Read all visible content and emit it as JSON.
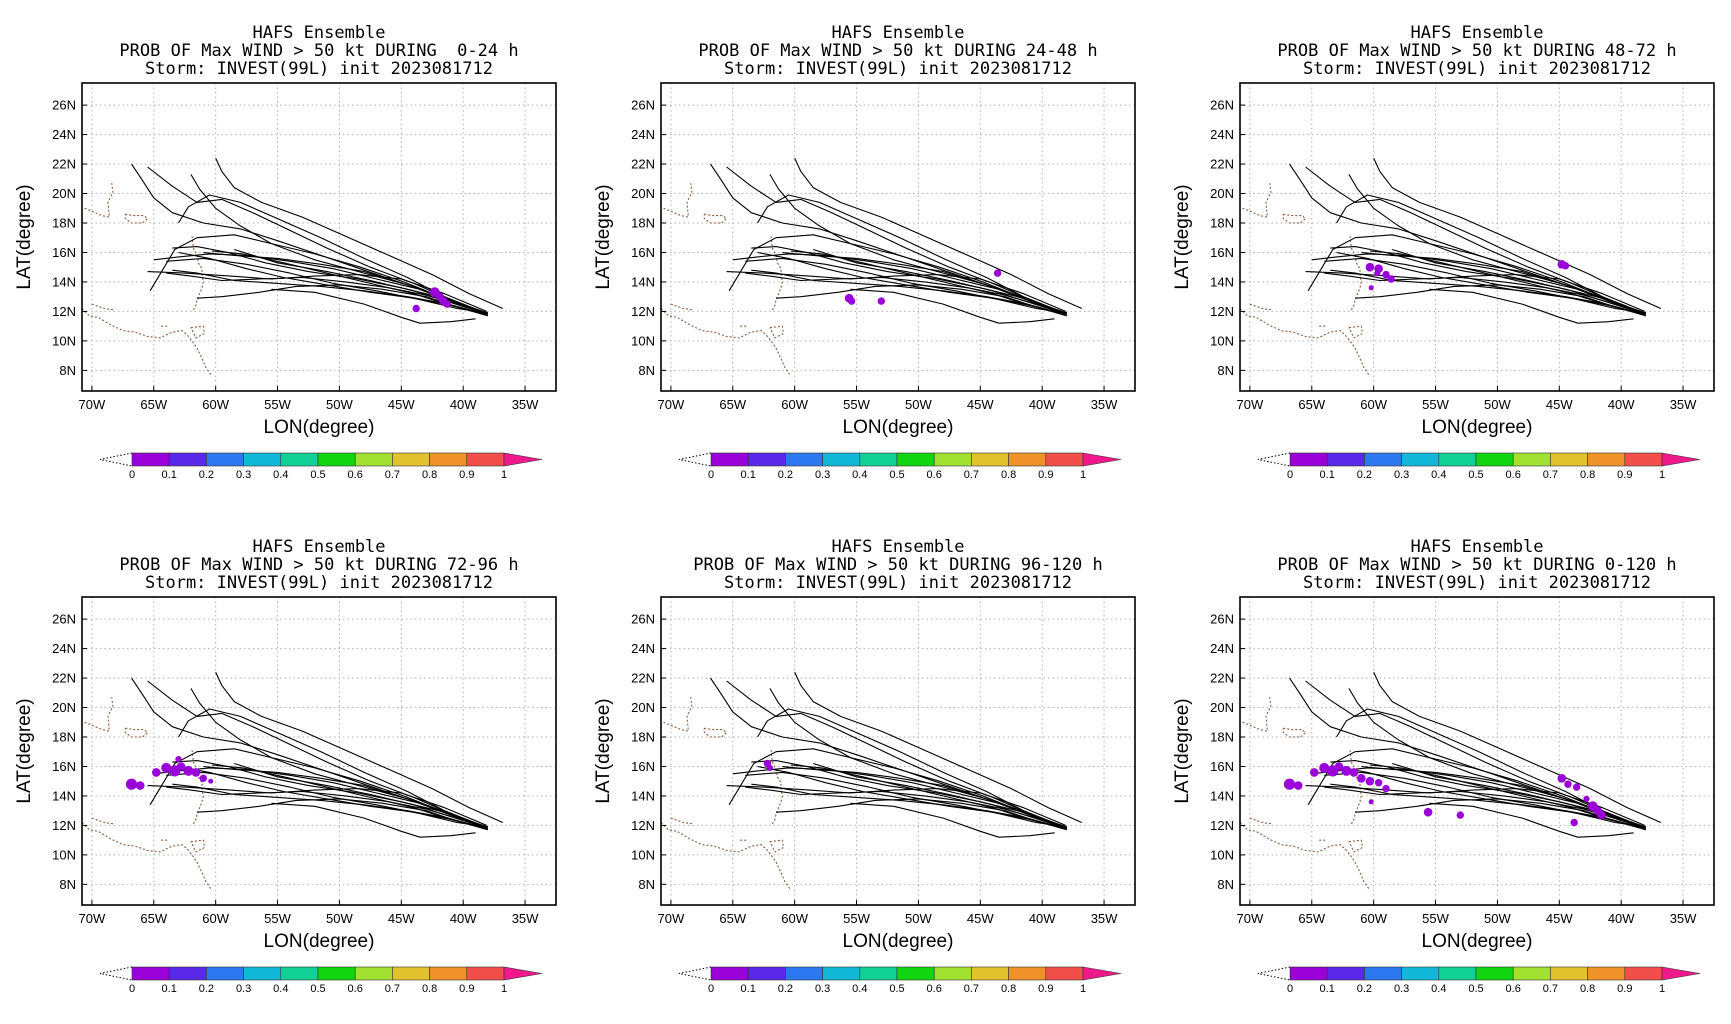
{
  "figure": {
    "model": "HAFS Ensemble",
    "storm_line": "Storm: INVEST(99L) init 2023081712"
  },
  "axes": {
    "lon_ticks": [
      {
        "value": -70,
        "label": "70W"
      },
      {
        "value": -65,
        "label": "65W"
      },
      {
        "value": -60,
        "label": "60W"
      },
      {
        "value": -55,
        "label": "55W"
      },
      {
        "value": -50,
        "label": "50W"
      },
      {
        "value": -45,
        "label": "45W"
      },
      {
        "value": -40,
        "label": "40W"
      },
      {
        "value": -35,
        "label": "35W"
      }
    ],
    "lat_ticks": [
      {
        "value": 8,
        "label": "8N"
      },
      {
        "value": 10,
        "label": "10N"
      },
      {
        "value": 12,
        "label": "12N"
      },
      {
        "value": 14,
        "label": "14N"
      },
      {
        "value": 16,
        "label": "16N"
      },
      {
        "value": 18,
        "label": "18N"
      },
      {
        "value": 20,
        "label": "20N"
      },
      {
        "value": 22,
        "label": "22N"
      },
      {
        "value": 24,
        "label": "24N"
      },
      {
        "value": 26,
        "label": "26N"
      }
    ],
    "xlabel": "LON(degree)",
    "ylabel": "LAT(degree)",
    "lon_range": [
      -70.8,
      -32.5
    ],
    "lat_range": [
      6.6,
      27.5
    ],
    "grid": "dotted"
  },
  "colorbar": {
    "labels": [
      "0",
      "0.1",
      "0.2",
      "0.3",
      "0.4",
      "0.5",
      "0.6",
      "0.7",
      "0.8",
      "0.9",
      "1"
    ],
    "colors": [
      "#9a00d8",
      "#5a28e8",
      "#2b78f0",
      "#12b8d8",
      "#10d094",
      "#12d512",
      "#a2e032",
      "#e2c22e",
      "#f0922a",
      "#f24f4a"
    ],
    "over_color": "#f0198c"
  },
  "tracks": [
    [
      [
        -38.0,
        11.8
      ],
      [
        -41.0,
        12.6
      ],
      [
        -44.0,
        13.4
      ],
      [
        -47.5,
        14.1
      ],
      [
        -51.0,
        14.7
      ],
      [
        -55.0,
        15.3
      ],
      [
        -58.5,
        16.2
      ]
    ],
    [
      [
        -38.3,
        11.8
      ],
      [
        -41.0,
        12.8
      ],
      [
        -44.5,
        13.8
      ],
      [
        -48.0,
        14.6
      ],
      [
        -52.0,
        15.5
      ],
      [
        -55.5,
        16.6
      ],
      [
        -58.0,
        17.8
      ],
      [
        -60.0,
        19.0
      ],
      [
        -61.3,
        20.3
      ],
      [
        -62.0,
        21.3
      ]
    ],
    [
      [
        -38.5,
        12.0
      ],
      [
        -41.5,
        13.0
      ],
      [
        -44.5,
        14.3
      ],
      [
        -48.0,
        15.6
      ],
      [
        -51.5,
        17.0
      ],
      [
        -55.0,
        18.3
      ],
      [
        -58.0,
        19.4
      ],
      [
        -60.5,
        19.9
      ],
      [
        -62.2,
        19.1
      ],
      [
        -63.0,
        18.0
      ]
    ],
    [
      [
        -36.8,
        12.2
      ],
      [
        -39.5,
        13.2
      ],
      [
        -42.5,
        14.5
      ],
      [
        -46.0,
        15.8
      ],
      [
        -49.5,
        17.1
      ],
      [
        -53.0,
        18.4
      ],
      [
        -56.3,
        19.4
      ],
      [
        -58.5,
        20.4
      ],
      [
        -59.5,
        21.5
      ],
      [
        -60.0,
        22.4
      ]
    ],
    [
      [
        -38.0,
        11.9
      ],
      [
        -40.5,
        12.6
      ],
      [
        -43.5,
        13.5
      ],
      [
        -47.0,
        14.2
      ],
      [
        -50.5,
        14.9
      ],
      [
        -54.0,
        15.4
      ],
      [
        -57.5,
        15.8
      ],
      [
        -60.5,
        15.9
      ],
      [
        -63.0,
        15.7
      ],
      [
        -65.0,
        15.5
      ]
    ],
    [
      [
        -38.2,
        11.9
      ],
      [
        -41.0,
        12.8
      ],
      [
        -44.0,
        13.9
      ],
      [
        -47.5,
        15.0
      ],
      [
        -51.0,
        16.3
      ],
      [
        -54.0,
        17.5
      ],
      [
        -57.0,
        18.7
      ],
      [
        -59.5,
        19.6
      ],
      [
        -61.5,
        19.4
      ],
      [
        -63.5,
        20.5
      ],
      [
        -65.5,
        21.8
      ]
    ],
    [
      [
        -38.0,
        11.7
      ],
      [
        -40.5,
        12.3
      ],
      [
        -43.0,
        13.0
      ],
      [
        -46.5,
        13.5
      ],
      [
        -50.0,
        13.8
      ],
      [
        -53.5,
        13.7
      ],
      [
        -56.5,
        13.3
      ],
      [
        -59.5,
        13.0
      ],
      [
        -61.5,
        12.9
      ]
    ],
    [
      [
        -38.3,
        11.8
      ],
      [
        -41.0,
        12.4
      ],
      [
        -44.0,
        13.2
      ],
      [
        -47.5,
        13.9
      ],
      [
        -51.0,
        14.6
      ],
      [
        -54.5,
        15.3
      ],
      [
        -57.8,
        15.9
      ],
      [
        -60.3,
        16.1
      ]
    ],
    [
      [
        -38.1,
        12.0
      ],
      [
        -41.5,
        13.2
      ],
      [
        -45.0,
        14.2
      ],
      [
        -48.5,
        14.5
      ],
      [
        -52.0,
        14.4
      ],
      [
        -55.5,
        14.2
      ],
      [
        -58.8,
        14.4
      ],
      [
        -62.5,
        14.6
      ],
      [
        -65.5,
        14.7
      ]
    ],
    [
      [
        -38.0,
        11.8
      ],
      [
        -41.0,
        12.4
      ],
      [
        -44.0,
        12.9
      ],
      [
        -47.5,
        13.3
      ],
      [
        -51.0,
        13.8
      ],
      [
        -54.5,
        14.3
      ],
      [
        -57.5,
        14.9
      ],
      [
        -60.5,
        15.6
      ],
      [
        -63.0,
        16.0
      ]
    ],
    [
      [
        -38.4,
        11.9
      ],
      [
        -41.0,
        12.8
      ],
      [
        -44.5,
        13.8
      ],
      [
        -48.0,
        14.8
      ],
      [
        -51.5,
        15.8
      ],
      [
        -55.0,
        16.8
      ],
      [
        -58.0,
        17.6
      ],
      [
        -61.0,
        18.0
      ],
      [
        -63.5,
        18.7
      ],
      [
        -65.0,
        19.7
      ],
      [
        -66.0,
        21.0
      ],
      [
        -66.8,
        22.0
      ]
    ],
    [
      [
        -38.0,
        11.8
      ],
      [
        -41.5,
        12.9
      ],
      [
        -45.0,
        13.6
      ],
      [
        -48.5,
        14.2
      ],
      [
        -52.5,
        14.7
      ],
      [
        -56.0,
        15.3
      ],
      [
        -59.0,
        16.0
      ],
      [
        -61.5,
        16.4
      ],
      [
        -63.5,
        16.3
      ]
    ],
    [
      [
        -38.2,
        11.9
      ],
      [
        -40.5,
        12.5
      ],
      [
        -43.0,
        13.1
      ],
      [
        -46.0,
        13.6
      ],
      [
        -49.5,
        14.0
      ],
      [
        -53.0,
        14.3
      ],
      [
        -56.5,
        14.2
      ],
      [
        -59.5,
        14.1
      ],
      [
        -62.0,
        14.4
      ],
      [
        -64.0,
        14.6
      ]
    ],
    [
      [
        -38.0,
        11.8
      ],
      [
        -41.0,
        12.7
      ],
      [
        -44.5,
        13.8
      ],
      [
        -48.0,
        14.7
      ],
      [
        -51.5,
        15.2
      ],
      [
        -55.0,
        15.6
      ],
      [
        -58.5,
        15.8
      ],
      [
        -61.0,
        16.0
      ]
    ],
    [
      [
        -38.1,
        11.8
      ],
      [
        -41.2,
        12.5
      ],
      [
        -44.5,
        13.0
      ],
      [
        -48.0,
        13.4
      ],
      [
        -51.5,
        13.7
      ],
      [
        -55.0,
        13.9
      ],
      [
        -58.5,
        14.1
      ],
      [
        -61.5,
        14.6
      ],
      [
        -63.5,
        14.8
      ]
    ],
    [
      [
        -38.3,
        11.9
      ],
      [
        -41.5,
        12.9
      ],
      [
        -44.8,
        14.0
      ],
      [
        -48.3,
        15.0
      ],
      [
        -52.0,
        15.9
      ],
      [
        -55.5,
        16.6
      ],
      [
        -58.5,
        17.2
      ],
      [
        -61.5,
        17.0
      ],
      [
        -63.3,
        16.2
      ],
      [
        -65.3,
        13.4
      ]
    ],
    [
      [
        -39.0,
        11.5
      ],
      [
        -41.0,
        11.3
      ],
      [
        -43.5,
        11.2
      ],
      [
        -45.0,
        11.6
      ],
      [
        -48.0,
        12.5
      ],
      [
        -52.0,
        13.3
      ],
      [
        -55.5,
        13.5
      ]
    ],
    [
      [
        -38.0,
        11.9
      ],
      [
        -40.5,
        12.2
      ],
      [
        -43.5,
        12.8
      ],
      [
        -47.0,
        13.4
      ],
      [
        -50.5,
        13.9
      ],
      [
        -54.0,
        14.6
      ],
      [
        -57.5,
        15.2
      ],
      [
        -61.0,
        15.6
      ],
      [
        -64.0,
        15.4
      ]
    ]
  ],
  "coast": [
    [
      [
        -70.6,
        19.0
      ],
      [
        -70.0,
        18.8
      ],
      [
        -69.2,
        18.5
      ],
      [
        -68.6,
        18.4
      ]
    ],
    [
      [
        -68.6,
        18.5
      ],
      [
        -68.7,
        19.4
      ],
      [
        -68.3,
        20.1
      ],
      [
        -68.4,
        20.7
      ]
    ],
    [
      [
        -67.3,
        18.6
      ],
      [
        -66.6,
        18.5
      ],
      [
        -65.8,
        18.5
      ],
      [
        -65.5,
        18.3
      ],
      [
        -65.9,
        18.0
      ],
      [
        -66.8,
        18.0
      ],
      [
        -67.3,
        18.3
      ],
      [
        -67.3,
        18.6
      ]
    ],
    [
      [
        -70.8,
        12.2
      ],
      [
        -70.2,
        11.7
      ],
      [
        -69.5,
        11.6
      ],
      [
        -68.5,
        11.1
      ],
      [
        -67.5,
        10.7
      ],
      [
        -66.5,
        10.6
      ],
      [
        -65.5,
        10.3
      ],
      [
        -64.5,
        10.2
      ],
      [
        -63.5,
        10.6
      ],
      [
        -62.7,
        10.7
      ],
      [
        -62.3,
        10.4
      ],
      [
        -61.9,
        10.0
      ],
      [
        -61.5,
        9.5
      ],
      [
        -61.1,
        8.8
      ],
      [
        -60.8,
        8.2
      ],
      [
        -60.3,
        7.6
      ]
    ],
    [
      [
        -62.0,
        10.9
      ],
      [
        -61.0,
        11.0
      ],
      [
        -60.9,
        10.5
      ],
      [
        -61.6,
        10.2
      ],
      [
        -62.0,
        10.9
      ]
    ],
    [
      [
        -61.8,
        12.1
      ],
      [
        -61.6,
        12.4
      ],
      [
        -61.5,
        12.8
      ],
      [
        -61.3,
        13.2
      ],
      [
        -61.1,
        13.6
      ],
      [
        -61.0,
        14.0
      ],
      [
        -61.1,
        14.5
      ],
      [
        -61.1,
        14.9
      ],
      [
        -61.4,
        15.3
      ],
      [
        -61.5,
        15.8
      ],
      [
        -61.8,
        16.3
      ],
      [
        -61.9,
        17.1
      ]
    ],
    [
      [
        -70.0,
        12.5
      ],
      [
        -69.0,
        12.2
      ],
      [
        -68.2,
        12.1
      ]
    ],
    [
      [
        -64.4,
        11.0
      ],
      [
        -63.8,
        11.0
      ]
    ]
  ],
  "panels": [
    {
      "id": "p0-24",
      "title": "HAFS Ensemble",
      "subtitle": "PROB OF Max WIND > 50 kt DURING  0-24 h",
      "storm": "Storm: INVEST(99L) init 2023081712",
      "blobs": [
        [
          -42.3,
          13.3,
          0.4
        ],
        [
          -41.9,
          13.0,
          0.35
        ],
        [
          -41.6,
          12.7,
          0.35
        ],
        [
          -41.3,
          12.5,
          0.3
        ],
        [
          -43.8,
          12.2,
          0.3
        ]
      ]
    },
    {
      "id": "p24-48",
      "title": "HAFS Ensemble",
      "subtitle": "PROB OF Max WIND > 50 kt DURING 24-48 h",
      "storm": "Storm: INVEST(99L) init 2023081712",
      "blobs": [
        [
          -43.6,
          14.6,
          0.3
        ],
        [
          -55.6,
          12.9,
          0.35
        ],
        [
          -55.4,
          12.7,
          0.3
        ],
        [
          -53.0,
          12.7,
          0.3
        ]
      ]
    },
    {
      "id": "p48-72",
      "title": "HAFS Ensemble",
      "subtitle": "PROB OF Max WIND > 50 kt DURING 48-72 h",
      "storm": "Storm: INVEST(99L) init 2023081712",
      "blobs": [
        [
          -60.3,
          15.0,
          0.35
        ],
        [
          -59.6,
          14.9,
          0.35
        ],
        [
          -59.0,
          14.5,
          0.3
        ],
        [
          -58.6,
          14.2,
          0.3
        ],
        [
          -59.7,
          14.6,
          0.25
        ],
        [
          -60.2,
          13.6,
          0.2
        ],
        [
          -44.8,
          15.2,
          0.35
        ],
        [
          -44.5,
          15.1,
          0.3
        ]
      ]
    },
    {
      "id": "p72-96",
      "title": "HAFS Ensemble",
      "subtitle": "PROB OF Max WIND > 50 kt DURING 72-96 h",
      "storm": "Storm: INVEST(99L) init 2023081712",
      "blobs": [
        [
          -66.8,
          14.8,
          0.45
        ],
        [
          -66.1,
          14.7,
          0.35
        ],
        [
          -64.8,
          15.6,
          0.35
        ],
        [
          -64.0,
          15.9,
          0.4
        ],
        [
          -63.3,
          15.7,
          0.45
        ],
        [
          -62.8,
          16.0,
          0.35
        ],
        [
          -62.2,
          15.7,
          0.4
        ],
        [
          -61.6,
          15.6,
          0.35
        ],
        [
          -61.0,
          15.2,
          0.3
        ],
        [
          -63.0,
          16.5,
          0.25
        ],
        [
          -60.4,
          15.0,
          0.2
        ]
      ]
    },
    {
      "id": "p96-120",
      "title": "HAFS Ensemble",
      "subtitle": "PROB OF Max WIND > 50 kt DURING 96-120 h",
      "storm": "Storm: INVEST(99L) init 2023081712",
      "blobs": [
        [
          -62.2,
          16.2,
          0.3
        ],
        [
          -62.0,
          15.9,
          0.25
        ]
      ]
    },
    {
      "id": "p0-120",
      "title": "HAFS Ensemble",
      "subtitle": "PROB OF Max WIND > 50 kt DURING 0-120 h",
      "storm": "Storm: INVEST(99L) init 2023081712",
      "blobs": [
        [
          -66.8,
          14.8,
          0.45
        ],
        [
          -66.1,
          14.7,
          0.35
        ],
        [
          -64.8,
          15.6,
          0.35
        ],
        [
          -64.0,
          15.9,
          0.4
        ],
        [
          -63.3,
          15.7,
          0.45
        ],
        [
          -62.8,
          16.0,
          0.35
        ],
        [
          -62.2,
          15.7,
          0.4
        ],
        [
          -61.6,
          15.6,
          0.35
        ],
        [
          -61.0,
          15.2,
          0.35
        ],
        [
          -60.3,
          15.0,
          0.35
        ],
        [
          -59.6,
          14.9,
          0.3
        ],
        [
          -59.0,
          14.5,
          0.3
        ],
        [
          -60.2,
          13.6,
          0.2
        ],
        [
          -55.6,
          12.9,
          0.35
        ],
        [
          -53.0,
          12.7,
          0.3
        ],
        [
          -44.8,
          15.2,
          0.35
        ],
        [
          -44.3,
          14.8,
          0.3
        ],
        [
          -43.6,
          14.6,
          0.3
        ],
        [
          -42.3,
          13.3,
          0.4
        ],
        [
          -41.9,
          13.0,
          0.35
        ],
        [
          -41.6,
          12.7,
          0.35
        ],
        [
          -43.8,
          12.2,
          0.3
        ],
        [
          -42.8,
          13.8,
          0.25
        ]
      ]
    }
  ]
}
